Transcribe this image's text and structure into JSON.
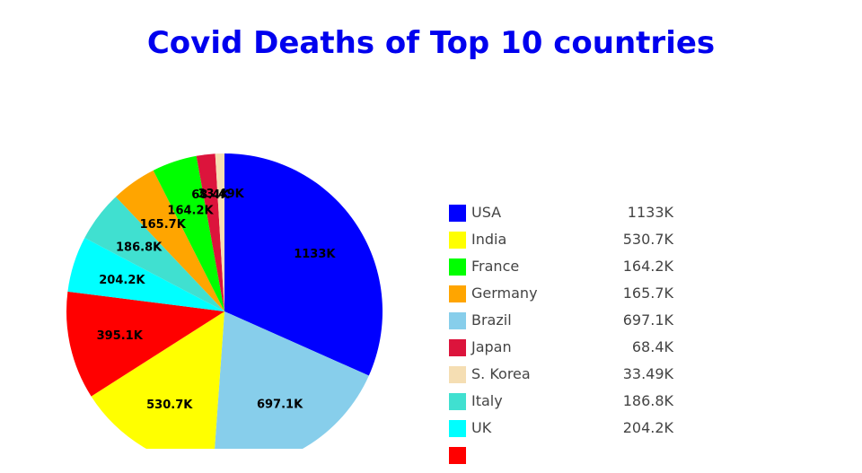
{
  "chart_data": {
    "type": "pie",
    "title": "Covid Deaths of Top 10 countries",
    "title_color": "#0000ee",
    "slices": [
      {
        "name": "USA",
        "value": 1133000,
        "label": "1133K",
        "legend_value": "1133K",
        "color": "#0000ff"
      },
      {
        "name": "Brazil",
        "value": 697100,
        "label": "697.1K",
        "legend_value": "697.1K",
        "color": "#87ceeb"
      },
      {
        "name": "India",
        "value": 530700,
        "label": "530.7K",
        "legend_value": "530.7K",
        "color": "#ffff00"
      },
      {
        "name": "",
        "value": 395100,
        "label": "395.1K",
        "legend_value": "",
        "color": "#ff0000"
      },
      {
        "name": "UK",
        "value": 204200,
        "label": "204.2K",
        "legend_value": "204.2K",
        "color": "#00ffff"
      },
      {
        "name": "Italy",
        "value": 186800,
        "label": "186.8K",
        "legend_value": "186.8K",
        "color": "#40e0d0"
      },
      {
        "name": "Germany",
        "value": 165700,
        "label": "165.7K",
        "legend_value": "165.7K",
        "color": "#ffa500"
      },
      {
        "name": "France",
        "value": 164200,
        "label": "164.2K",
        "legend_value": "164.2K",
        "color": "#00ff00"
      },
      {
        "name": "Japan",
        "value": 68400,
        "label": "68.4K",
        "legend_value": "68.4K",
        "color": "#dc143c"
      },
      {
        "name": "S. Korea",
        "value": 33490,
        "label": "33.49K",
        "legend_value": "33.49K",
        "color": "#f5deb3"
      }
    ],
    "legend_order": [
      "USA",
      "India",
      "France",
      "Germany",
      "Brazil",
      "Japan",
      "S. Korea",
      "Italy",
      "UK",
      ""
    ],
    "legend_placement": "right"
  }
}
